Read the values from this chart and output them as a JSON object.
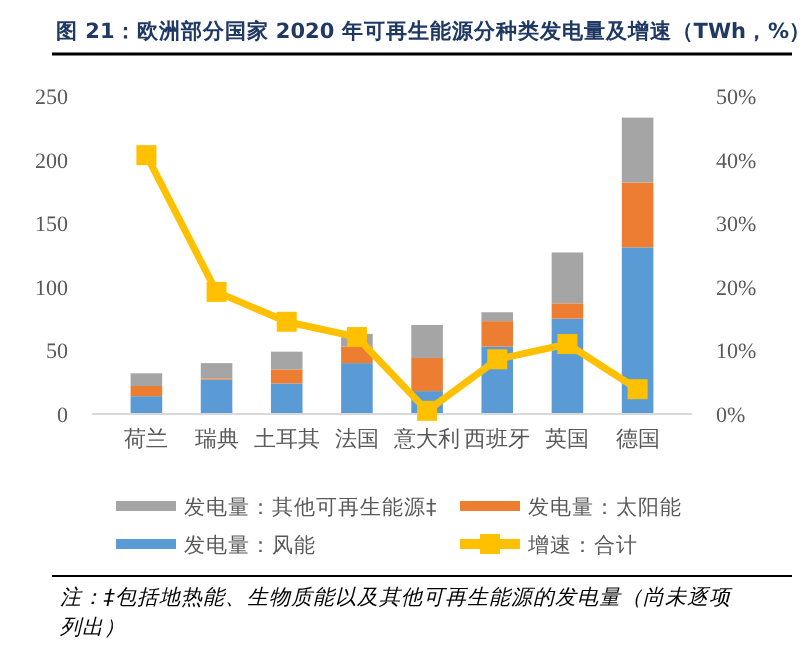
{
  "chart_data": {
    "type": "bar",
    "title": "图 21：欧洲部分国家 2020 年可再生能源分种类发电量及增速（TWh，%）",
    "categories": [
      "荷兰",
      "瑞典",
      "土耳其",
      "法国",
      "意大利",
      "西班牙",
      "英国",
      "德国"
    ],
    "stacked": true,
    "series": [
      {
        "name": "发电量：风能",
        "color": "#5b9bd5",
        "values": [
          14,
          27,
          24,
          40,
          18,
          53,
          75,
          131
        ]
      },
      {
        "name": "发电量：太阳能",
        "color": "#ed7d31",
        "values": [
          8,
          1,
          11,
          13,
          26,
          20,
          12,
          51
        ]
      },
      {
        "name": "发电量：其他可再生能源‡",
        "color": "#a5a5a5",
        "values": [
          10,
          12,
          14,
          10,
          26,
          7,
          40,
          51
        ]
      },
      {
        "name": "增速：合计",
        "type": "line",
        "axis": "y2",
        "color": "#ffc000",
        "values": [
          40.7,
          19.2,
          14.5,
          12.1,
          0.5,
          8.6,
          11,
          3.9
        ]
      }
    ],
    "ylim": [
      0,
      250
    ],
    "yticks": [
      0,
      50,
      100,
      150,
      200,
      250
    ],
    "y2lim": [
      0,
      50
    ],
    "y2ticks": [
      {
        "value": 0,
        "label": "0%"
      },
      {
        "value": 10,
        "label": "10%"
      },
      {
        "value": 20,
        "label": "20%"
      },
      {
        "value": 30,
        "label": "30%"
      },
      {
        "value": 40,
        "label": "40%"
      },
      {
        "value": 50,
        "label": "50%"
      }
    ],
    "grid": false,
    "legend": "bottom",
    "marker": "square",
    "line_style": "solid",
    "annotations": [
      "注：‡包括地热能、生物质能以及其他可再生能源的发电量（尚未逐项列出）"
    ]
  }
}
